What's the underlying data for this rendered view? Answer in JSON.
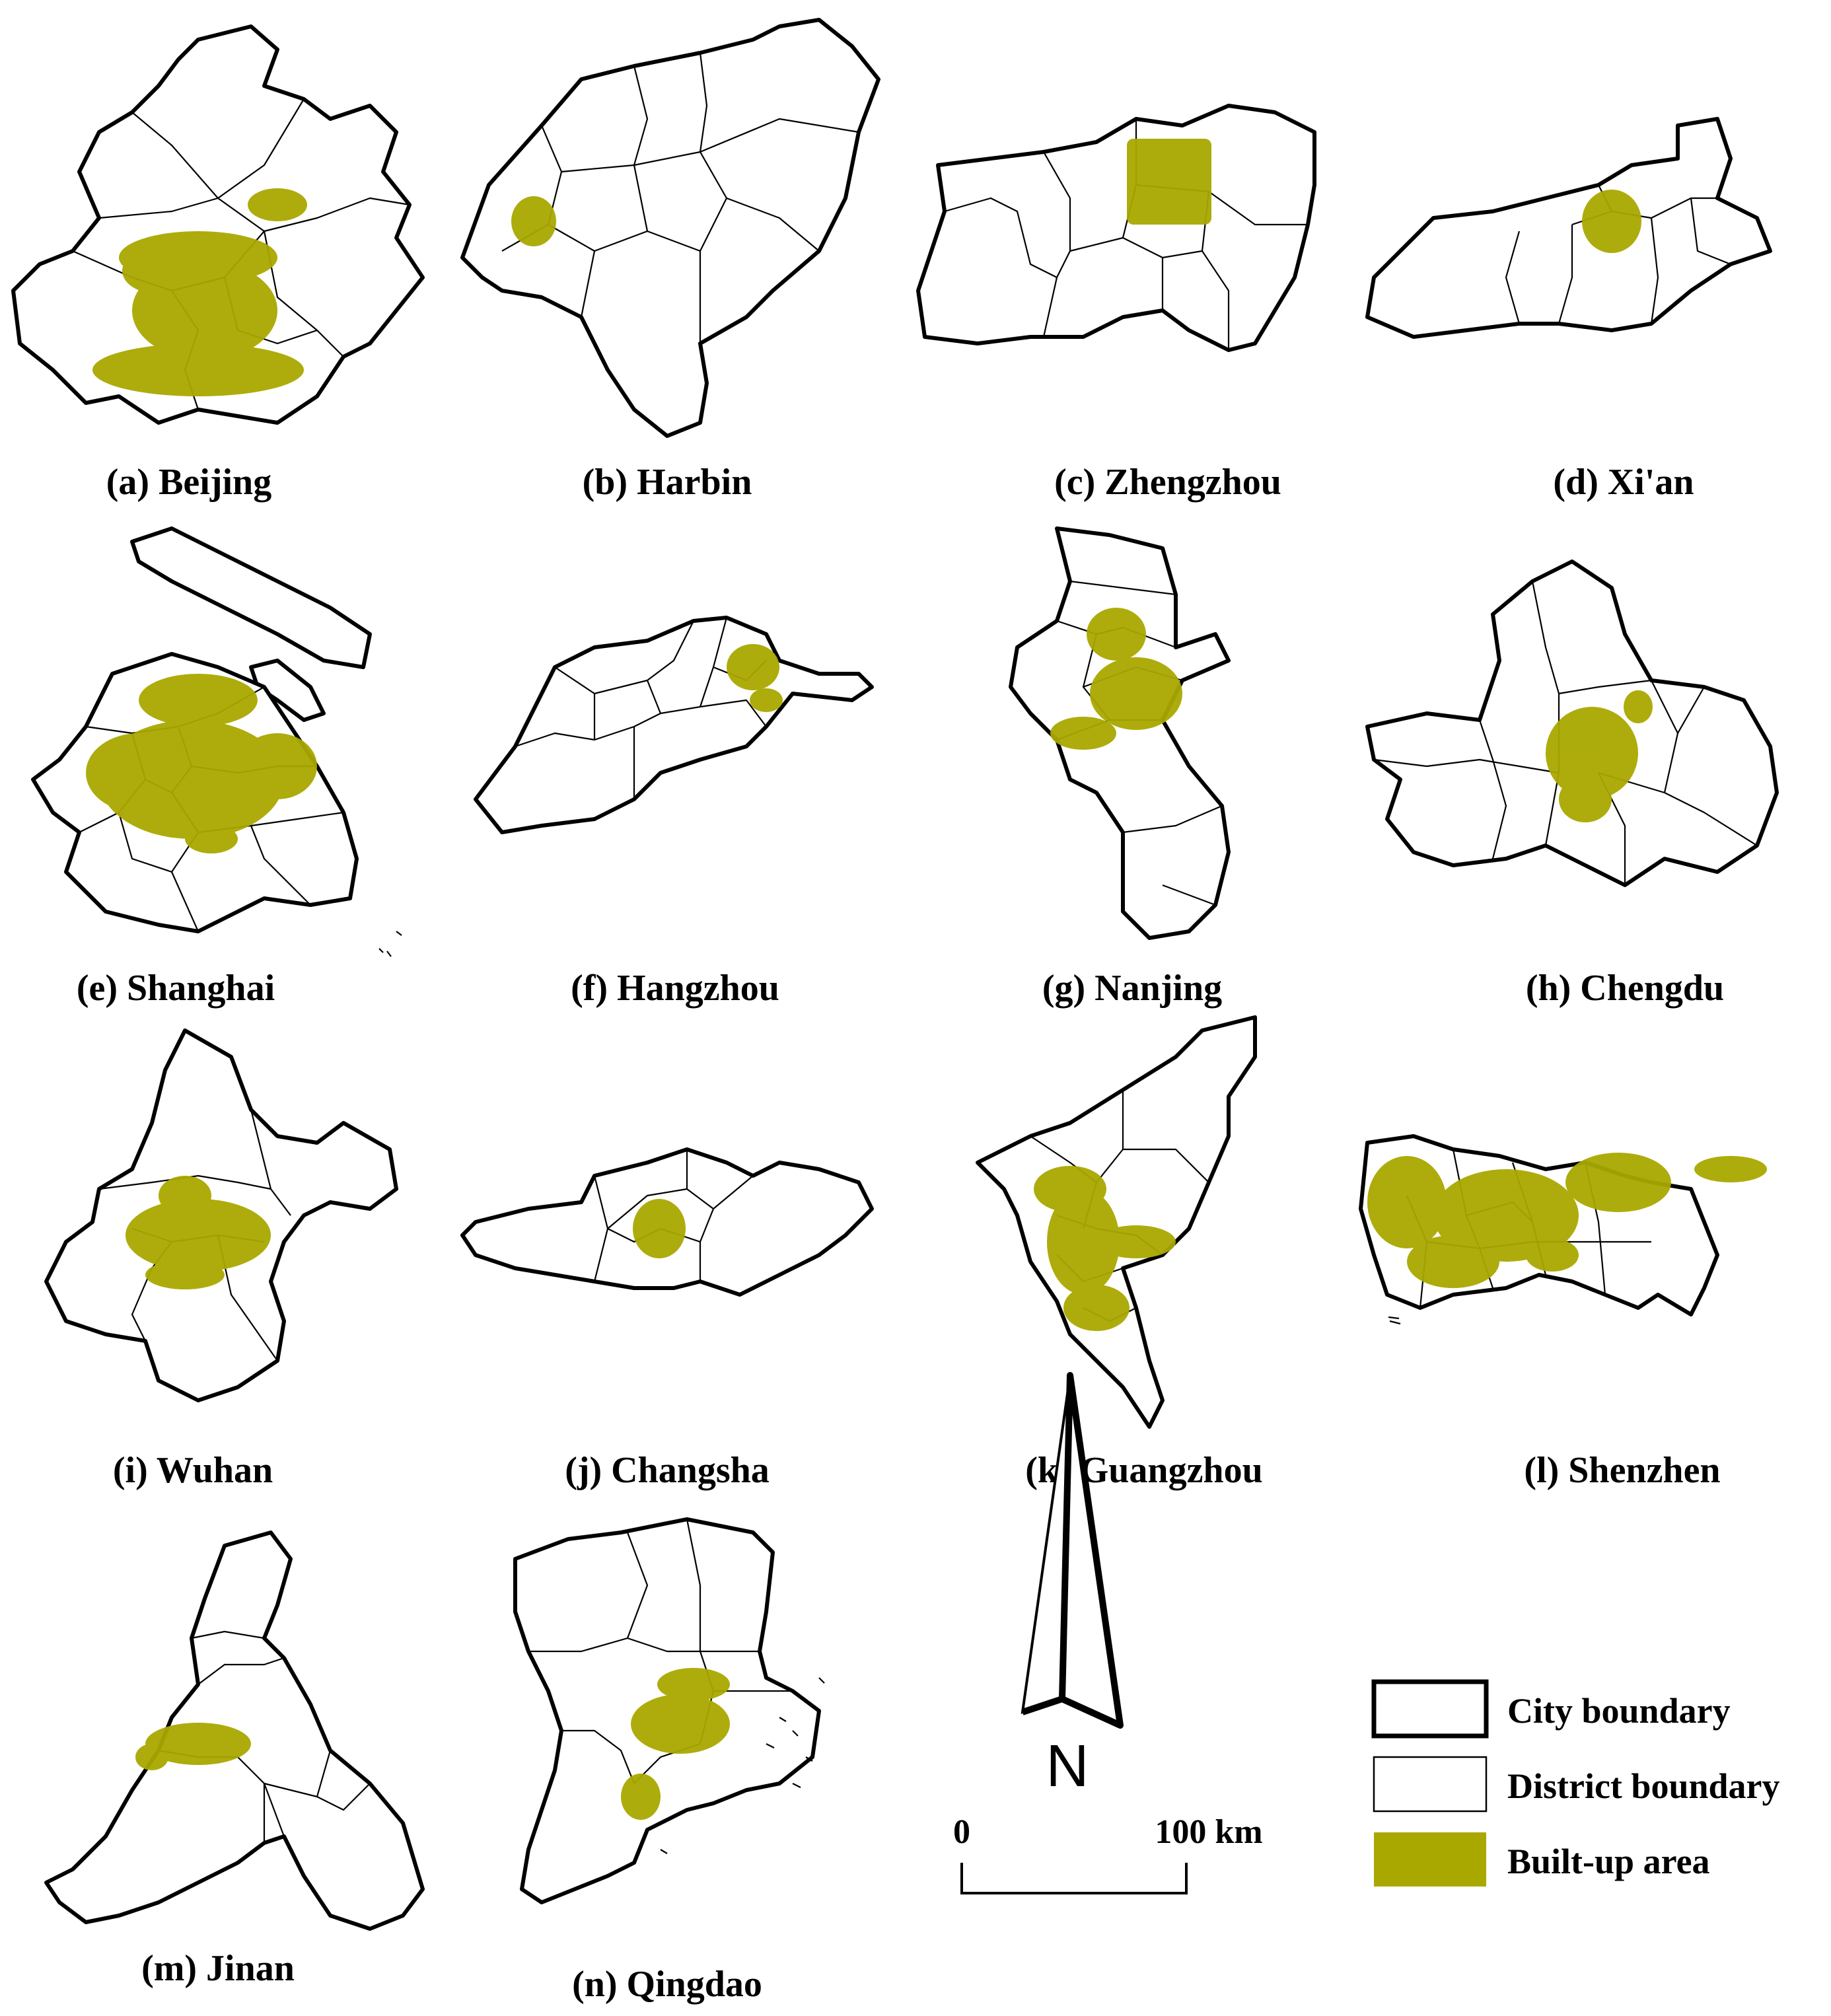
{
  "colors": {
    "builtup": "#a9a800",
    "boundary": "#000000",
    "background": "#ffffff"
  },
  "panels": [
    {
      "id": "a",
      "label": "(a) Beijing"
    },
    {
      "id": "b",
      "label": "(b) Harbin"
    },
    {
      "id": "c",
      "label": "(c) Zhengzhou"
    },
    {
      "id": "d",
      "label": "(d) Xi'an"
    },
    {
      "id": "e",
      "label": "(e) Shanghai"
    },
    {
      "id": "f",
      "label": "(f) Hangzhou"
    },
    {
      "id": "g",
      "label": "(g) Nanjing"
    },
    {
      "id": "h",
      "label": "(h) Chengdu"
    },
    {
      "id": "i",
      "label": "(i) Wuhan"
    },
    {
      "id": "j",
      "label": "(j) Changsha"
    },
    {
      "id": "k",
      "label": "(k) Guangzhou"
    },
    {
      "id": "l",
      "label": "(l) Shenzhen"
    },
    {
      "id": "m",
      "label": "(m) Jinan"
    },
    {
      "id": "n",
      "label": "(n) Qingdao"
    }
  ],
  "north_arrow": {
    "label": "N",
    "icon": "north-arrow-icon"
  },
  "scale_bar": {
    "start_label": "0",
    "end_label": "100 km"
  },
  "legend": {
    "items": [
      {
        "label": "City boundary",
        "icon": "city-boundary-swatch"
      },
      {
        "label": "District boundary",
        "icon": "district-boundary-swatch"
      },
      {
        "label": "Built-up area",
        "icon": "built-up-area-swatch"
      }
    ]
  }
}
